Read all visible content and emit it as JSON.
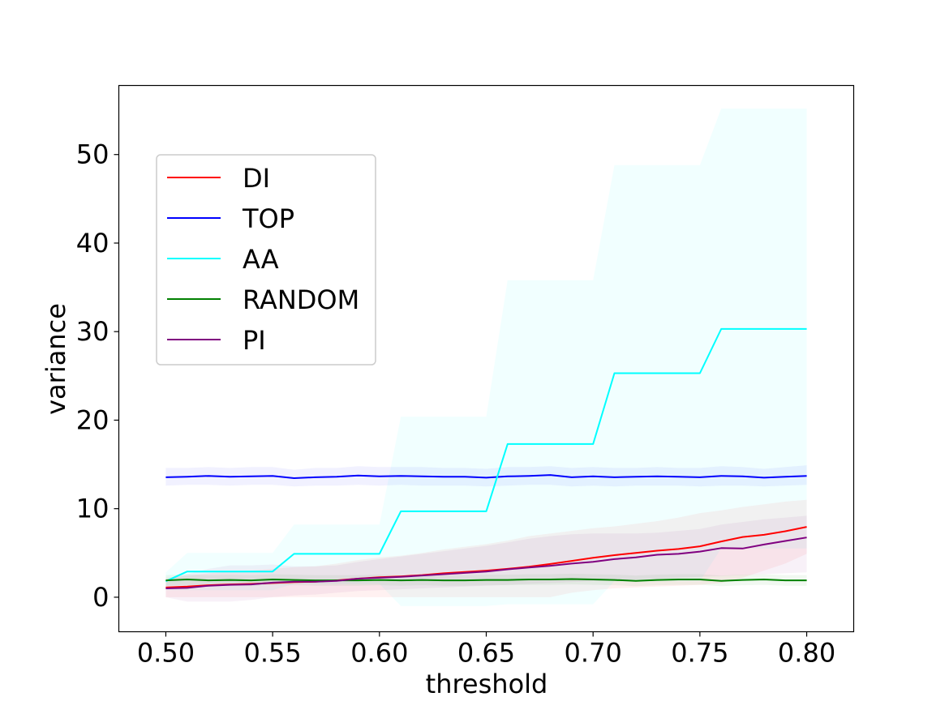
{
  "chart_data": {
    "type": "line",
    "title": "",
    "xlabel": "threshold",
    "ylabel": "variance",
    "xlim": [
      0.478,
      0.822
    ],
    "ylim": [
      -3.9,
      57.8
    ],
    "xticks": [
      "0.50",
      "0.55",
      "0.60",
      "0.65",
      "0.70",
      "0.75",
      "0.80"
    ],
    "yticks": [
      "0",
      "10",
      "20",
      "30",
      "40",
      "50"
    ],
    "legend_position": "upper-left",
    "grid": false,
    "x": [
      0.5,
      0.51,
      0.52,
      0.53,
      0.54,
      0.55,
      0.56,
      0.57,
      0.58,
      0.59,
      0.6,
      0.61,
      0.62,
      0.63,
      0.64,
      0.65,
      0.66,
      0.67,
      0.68,
      0.69,
      0.7,
      0.71,
      0.72,
      0.73,
      0.74,
      0.75,
      0.76,
      0.77,
      0.78,
      0.79,
      0.8
    ],
    "series": [
      {
        "name": "DI",
        "color": "#ff0000",
        "values": [
          1.1,
          1.2,
          1.35,
          1.45,
          1.5,
          1.6,
          1.7,
          1.75,
          1.9,
          2.1,
          2.25,
          2.35,
          2.5,
          2.7,
          2.85,
          3.0,
          3.2,
          3.45,
          3.75,
          4.1,
          4.45,
          4.75,
          5.0,
          5.25,
          5.45,
          5.75,
          6.3,
          6.8,
          7.05,
          7.45,
          7.95
        ],
        "lower": [
          0.0,
          0.0,
          0.0,
          0.0,
          0.0,
          0.0,
          0.0,
          0.0,
          0.0,
          0.0,
          0.0,
          0.0,
          0.0,
          0.0,
          0.0,
          0.0,
          0.0,
          0.0,
          0.0,
          0.5,
          0.8,
          1.0,
          1.1,
          1.2,
          1.3,
          1.4,
          1.6,
          2.2,
          3.0,
          3.8,
          4.9
        ],
        "upper": [
          2.2,
          2.4,
          2.7,
          2.9,
          3.0,
          3.2,
          3.4,
          3.5,
          3.8,
          4.2,
          4.5,
          4.7,
          5.0,
          5.4,
          5.7,
          6.0,
          6.4,
          6.9,
          7.2,
          7.5,
          7.8,
          8.0,
          8.3,
          8.6,
          9.0,
          9.5,
          9.8,
          10.2,
          10.5,
          10.8,
          11.0
        ]
      },
      {
        "name": "TOP",
        "color": "#0000ff",
        "values": [
          13.55,
          13.6,
          13.7,
          13.6,
          13.65,
          13.7,
          13.45,
          13.55,
          13.6,
          13.75,
          13.65,
          13.7,
          13.65,
          13.6,
          13.6,
          13.5,
          13.65,
          13.7,
          13.8,
          13.55,
          13.65,
          13.55,
          13.6,
          13.65,
          13.6,
          13.55,
          13.7,
          13.65,
          13.5,
          13.6,
          13.7
        ],
        "lower": [
          12.6,
          12.7,
          12.7,
          12.6,
          12.7,
          12.7,
          12.5,
          12.6,
          12.6,
          12.7,
          12.6,
          12.7,
          12.6,
          12.6,
          12.6,
          12.5,
          12.6,
          12.7,
          12.7,
          12.5,
          12.6,
          12.5,
          12.6,
          12.6,
          12.6,
          12.5,
          12.6,
          12.6,
          12.5,
          12.6,
          12.7
        ],
        "upper": [
          14.6,
          14.6,
          14.7,
          14.6,
          14.7,
          14.7,
          14.4,
          14.6,
          14.6,
          14.8,
          14.7,
          14.7,
          14.7,
          14.6,
          14.6,
          14.5,
          14.7,
          14.7,
          14.8,
          14.6,
          14.7,
          14.6,
          14.6,
          14.7,
          14.6,
          14.6,
          14.8,
          14.7,
          14.5,
          14.7,
          14.9
        ]
      },
      {
        "name": "AA",
        "color": "#00ffff",
        "values": [
          1.8,
          2.9,
          2.9,
          2.9,
          2.9,
          2.9,
          4.9,
          4.9,
          4.9,
          4.9,
          4.9,
          9.7,
          9.7,
          9.7,
          9.7,
          9.7,
          17.3,
          17.3,
          17.3,
          17.3,
          17.3,
          25.3,
          25.3,
          25.3,
          25.3,
          25.3,
          30.3,
          30.3,
          30.3,
          30.3,
          30.3
        ],
        "lower": [
          0.8,
          0.8,
          0.8,
          0.8,
          0.8,
          0.8,
          1.5,
          1.5,
          1.5,
          1.5,
          1.5,
          -1.0,
          -1.0,
          -1.0,
          -1.0,
          -1.0,
          -0.8,
          -0.8,
          -0.8,
          -0.8,
          -0.8,
          1.8,
          1.8,
          1.8,
          1.8,
          1.8,
          5.5,
          5.5,
          5.5,
          5.5,
          5.5
        ],
        "upper": [
          2.8,
          5.0,
          5.0,
          5.0,
          5.0,
          5.0,
          8.2,
          8.2,
          8.2,
          8.2,
          8.2,
          20.4,
          20.4,
          20.4,
          20.4,
          20.4,
          35.8,
          35.8,
          35.8,
          35.8,
          35.8,
          48.8,
          48.8,
          48.8,
          48.8,
          48.8,
          55.2,
          55.2,
          55.2,
          55.2,
          55.2
        ]
      },
      {
        "name": "RANDOM",
        "color": "#008000",
        "values": [
          1.9,
          2.0,
          1.9,
          1.95,
          1.9,
          2.0,
          1.95,
          1.9,
          1.9,
          1.9,
          1.95,
          1.9,
          1.95,
          1.9,
          1.9,
          1.95,
          1.95,
          2.0,
          2.0,
          2.05,
          2.0,
          1.95,
          1.85,
          1.95,
          2.0,
          2.0,
          1.85,
          1.95,
          2.0,
          1.9,
          1.9
        ],
        "lower": [
          1.3,
          1.4,
          1.3,
          1.35,
          1.3,
          1.4,
          1.35,
          1.3,
          1.3,
          1.3,
          1.35,
          1.3,
          1.35,
          1.3,
          1.3,
          1.35,
          1.35,
          1.4,
          1.4,
          1.45,
          1.4,
          1.35,
          1.25,
          1.35,
          1.4,
          1.4,
          1.25,
          1.35,
          1.4,
          1.3,
          1.3
        ],
        "upper": [
          2.5,
          2.6,
          2.5,
          2.55,
          2.5,
          2.6,
          2.55,
          2.5,
          2.5,
          2.5,
          2.55,
          2.5,
          2.55,
          2.5,
          2.5,
          2.55,
          2.55,
          2.6,
          2.6,
          2.65,
          2.6,
          2.55,
          2.45,
          2.55,
          2.6,
          2.6,
          2.45,
          2.55,
          2.6,
          2.5,
          2.5
        ]
      },
      {
        "name": "PI",
        "color": "#800080",
        "values": [
          1.0,
          1.05,
          1.3,
          1.4,
          1.45,
          1.65,
          1.75,
          1.75,
          1.85,
          2.1,
          2.2,
          2.3,
          2.45,
          2.6,
          2.75,
          2.9,
          3.15,
          3.35,
          3.55,
          3.8,
          4.0,
          4.3,
          4.5,
          4.8,
          4.9,
          5.15,
          5.55,
          5.5,
          5.95,
          6.35,
          6.75
        ],
        "lower": [
          0.0,
          -0.5,
          -0.5,
          -0.5,
          -0.3,
          0.0,
          0.2,
          0.3,
          0.5,
          0.7,
          0.8,
          0.9,
          1.0,
          1.1,
          1.2,
          1.3,
          1.4,
          1.5,
          1.6,
          1.7,
          1.8,
          1.9,
          2.0,
          2.1,
          2.2,
          2.3,
          2.4,
          2.5,
          2.6,
          2.7,
          2.8
        ],
        "upper": [
          2.0,
          2.6,
          3.2,
          3.6,
          3.6,
          3.7,
          3.5,
          3.5,
          3.6,
          4.0,
          4.3,
          4.6,
          4.9,
          5.2,
          5.5,
          5.8,
          6.2,
          6.6,
          6.9,
          7.1,
          7.2,
          7.2,
          7.2,
          7.3,
          7.5,
          7.7,
          8.2,
          8.5,
          8.8,
          9.0,
          9.2
        ]
      }
    ]
  }
}
